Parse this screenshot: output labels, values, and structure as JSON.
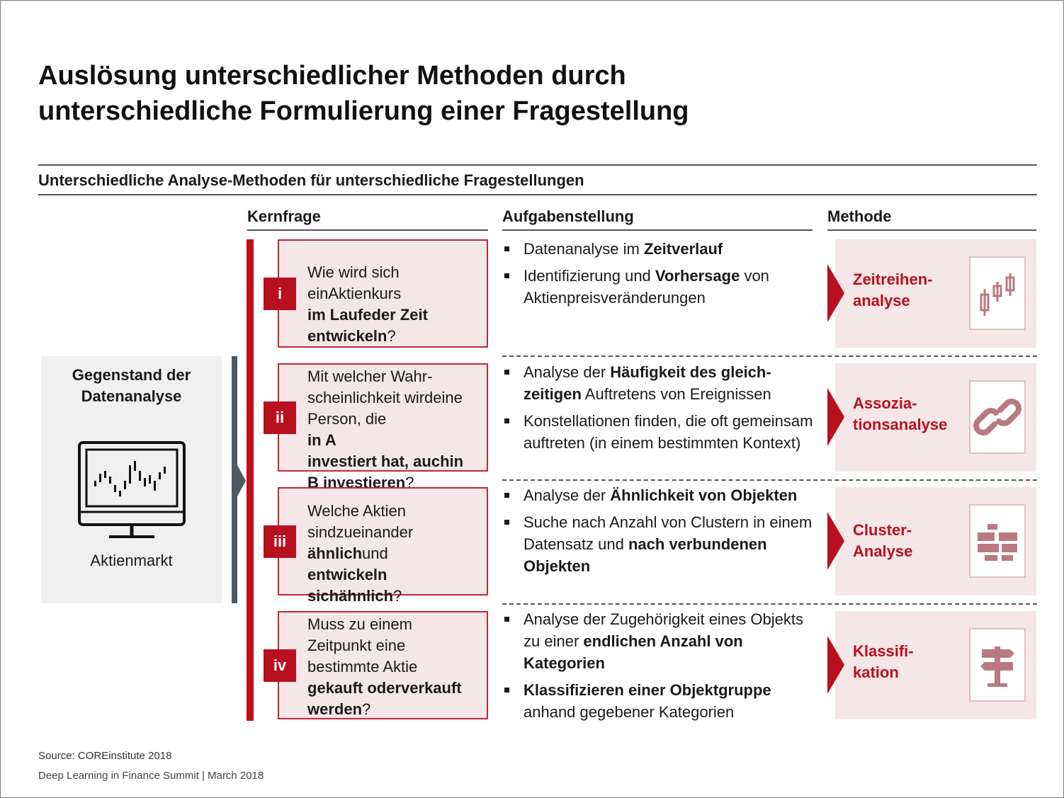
{
  "title": {
    "line1": "Auslösung unterschiedlicher Methoden durch",
    "line2": "unterschiedliche Formulierung einer Fragestellung"
  },
  "subtitle": "Unterschiedliche Analyse-Methoden für unterschiedliche Fragestellungen",
  "columns": {
    "kernfrage": "Kernfrage",
    "aufgabe": "Aufgabenstellung",
    "methode": "Methode"
  },
  "subject": {
    "line1": "Gegenstand der",
    "line2": "Datenanalyse",
    "label": "Aktienmarkt",
    "icon": "monitor-stock-chart-icon"
  },
  "rows": [
    {
      "num": "i",
      "question": [
        {
          "t": "Wie wird sich ein"
        },
        {
          "t": "Aktienkurs "
        },
        {
          "t": "im Laufe",
          "b": true
        },
        {
          "t": "der Zeit entwickeln",
          "b": true
        },
        {
          "t": "?"
        }
      ],
      "tasks": [
        [
          {
            "t": "Datenanalyse im "
          },
          {
            "t": "Zeitverlauf",
            "b": true
          }
        ],
        [
          {
            "t": "Identifizierung und "
          },
          {
            "t": "Vorhersage",
            "b": true
          },
          {
            "t": " von Aktienpreisveränderungen"
          }
        ]
      ],
      "method": {
        "line1": "Zeitreihen-",
        "line2": "analyse",
        "icon": "candlestick-icon"
      }
    },
    {
      "num": "ii",
      "question": [
        {
          "t": "Mit welcher Wahr-"
        },
        {
          "t": "scheinlichkeit wird"
        },
        {
          "t": "eine Person, die "
        },
        {
          "t": "in A",
          "b": true
        },
        {
          "t": "investiert hat, auch",
          "b": true
        },
        {
          "t": "in B investieren",
          "b": true
        },
        {
          "t": "?"
        }
      ],
      "tasks": [
        [
          {
            "t": "Analyse der "
          },
          {
            "t": "Häufigkeit des gleich-",
            "b": true
          },
          {
            "t": "zeitigen",
            "b": true
          },
          {
            "t": " Auftretens von Ereignissen"
          }
        ],
        [
          {
            "t": "Konstellationen finden, die oft gemeinsam auftreten (in einem bestimmten Kontext)"
          }
        ]
      ],
      "method": {
        "line1": "Assozia-",
        "line2": "tionsanalyse",
        "icon": "chain-link-icon"
      }
    },
    {
      "num": "iii",
      "question": [
        {
          "t": "Welche Aktien sind"
        },
        {
          "t": "zueinander "
        },
        {
          "t": "ähnlich",
          "b": true
        },
        {
          "t": "und "
        },
        {
          "t": "entwickeln sich",
          "b": true
        },
        {
          "t": "ähnlich",
          "b": true
        },
        {
          "t": "?"
        }
      ],
      "tasks": [
        [
          {
            "t": "Analyse der "
          },
          {
            "t": "Ähnlichkeit von Objekten",
            "b": true
          }
        ],
        [
          {
            "t": "Suche nach Anzahl von Clustern in einem Datensatz und "
          },
          {
            "t": "nach verbundenen Objekten",
            "b": true
          }
        ]
      ],
      "method": {
        "line1": "Cluster-",
        "line2": "Analyse",
        "icon": "cluster-blocks-icon"
      }
    },
    {
      "num": "iv",
      "question": [
        {
          "t": "Muss zu einem"
        },
        {
          "t": "Zeitpunkt eine"
        },
        {
          "t": "bestimmte Aktie"
        },
        {
          "t": "gekauft oder",
          "b": true
        },
        {
          "t": "verkauft werden",
          "b": true
        },
        {
          "t": "?"
        }
      ],
      "tasks": [
        [
          {
            "t": "Analyse der Zugehörigkeit eines Objekts zu einer "
          },
          {
            "t": "endlichen Anzahl von Kategorien",
            "b": true
          }
        ],
        [
          {
            "t": "Klassifizieren einer Objektgruppe",
            "b": true
          },
          {
            "t": " anhand gegebener Kategorien"
          }
        ]
      ],
      "method": {
        "line1": "Klassifi-",
        "line2": "kation",
        "icon": "signpost-icon"
      }
    }
  ],
  "footer": {
    "source": "Source: COREinstitute 2018",
    "event": "Deep Learning in Finance Summit | March 2018"
  },
  "colors": {
    "accent": "#b8101f",
    "panel": "#f5e6e7",
    "grey": "#4e5a63"
  }
}
